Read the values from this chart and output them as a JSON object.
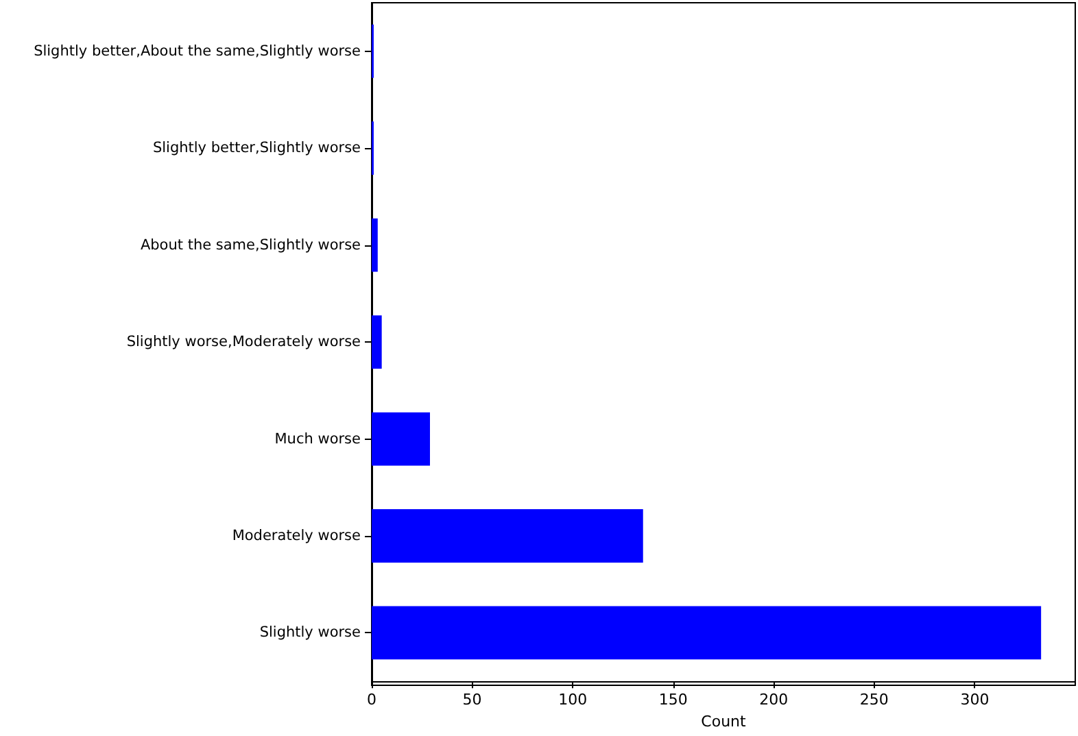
{
  "chart_data": {
    "type": "bar",
    "orientation": "horizontal",
    "xlabel": "Count",
    "categories": [
      "Slightly better,About the same,Slightly worse",
      "Slightly better,Slightly worse",
      "About the same,Slightly worse",
      "Slightly worse,Moderately worse",
      "Much worse",
      "Moderately worse",
      "Slightly worse"
    ],
    "values": [
      1,
      1,
      3,
      5,
      29,
      135,
      333
    ],
    "color": "#0000ff",
    "xlim": [
      0,
      350
    ],
    "xticks": [
      0,
      50,
      100,
      150,
      200,
      250,
      300
    ],
    "grid": false
  }
}
